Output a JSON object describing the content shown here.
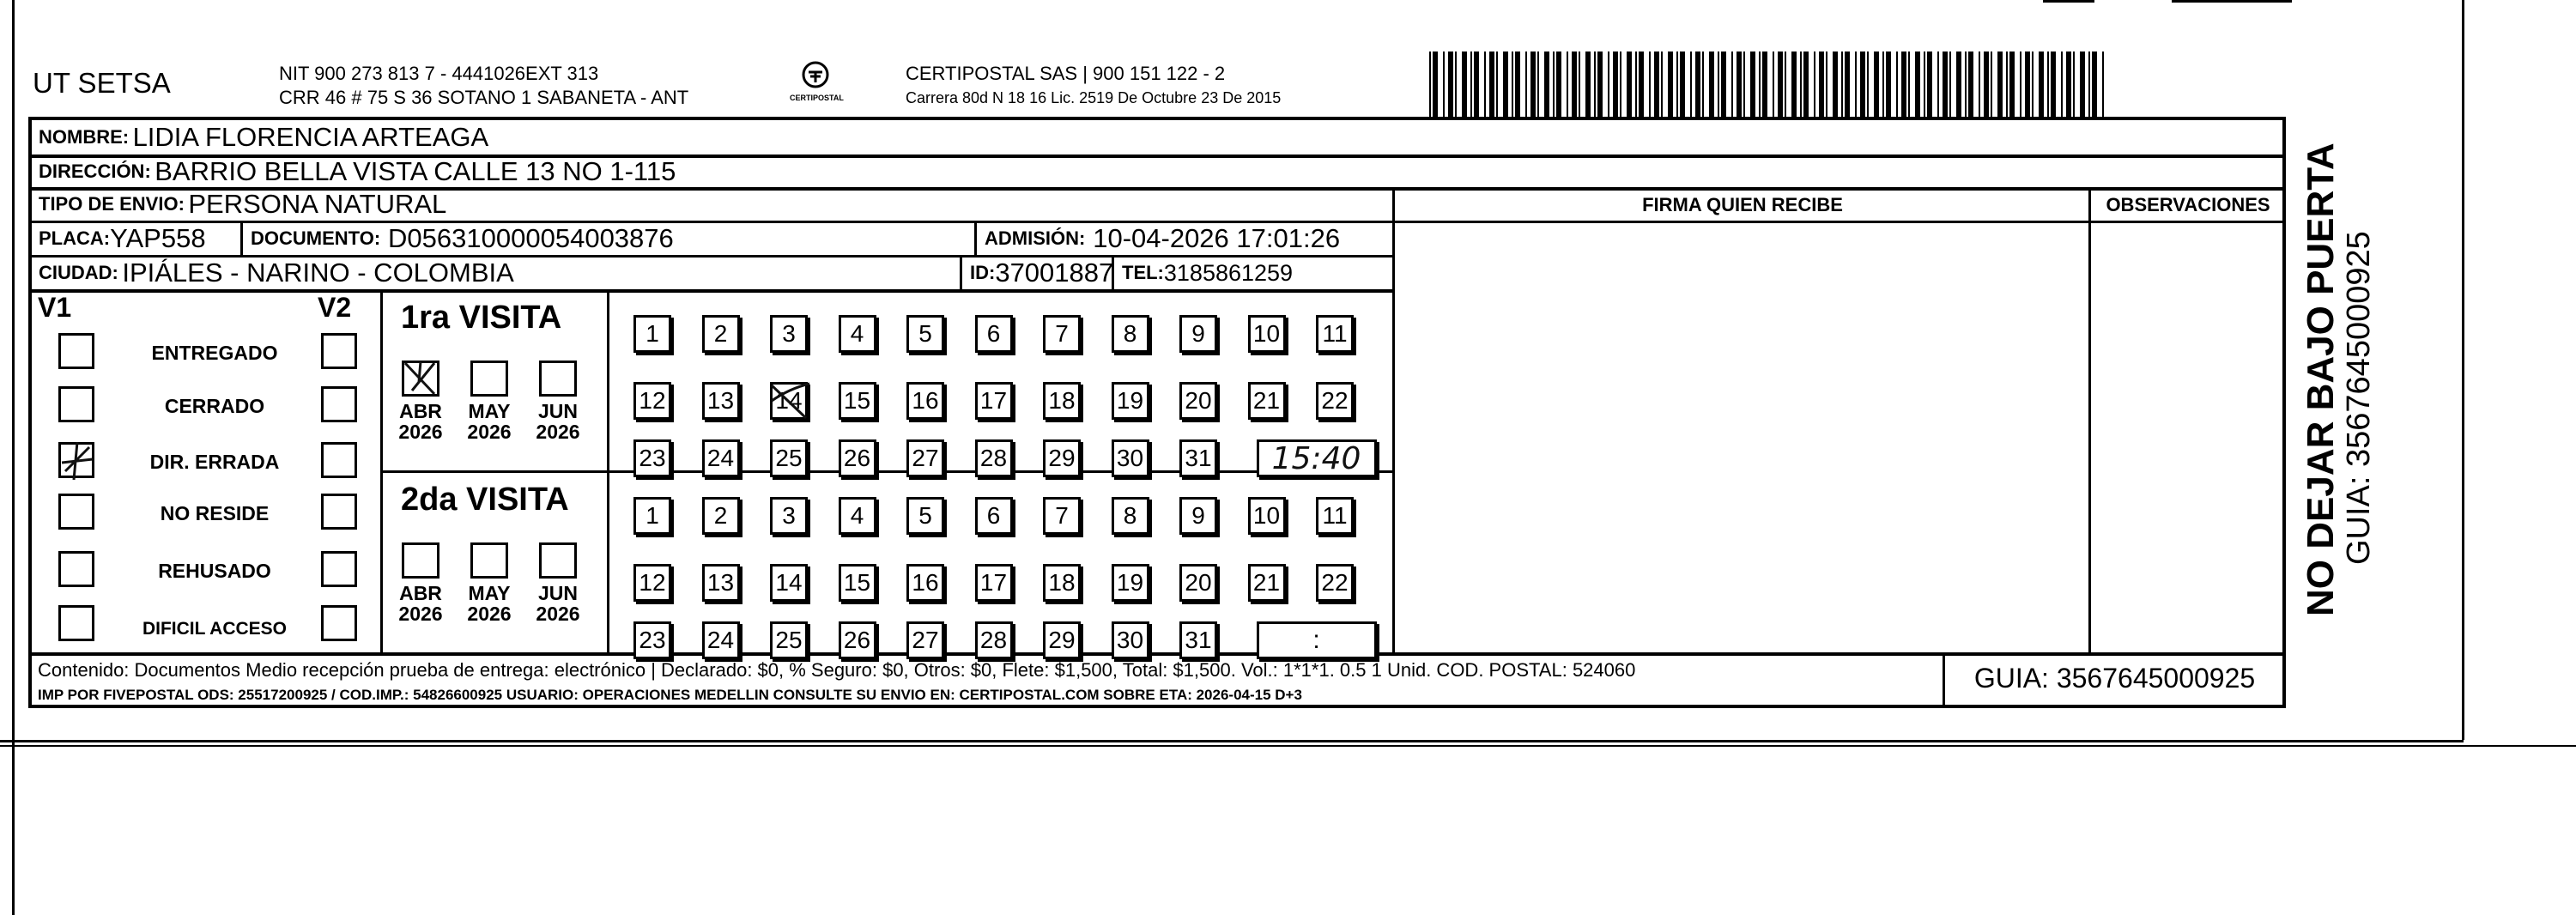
{
  "header": {
    "company": "UT SETSA",
    "nit": "NIT 900 273 813 7 - 4441026EXT 313",
    "address": "CRR 46 # 75 S 36 SOTANO 1 SABANETA - ANT",
    "logo_text": "CERTIPOSTAL",
    "carrier": "CERTIPOSTAL SAS | 900 151 122 - 2",
    "license": "Carrera 80d N 18 16  Lic. 2519 De Octubre 23 De 2015"
  },
  "recipient": {
    "nombre_label": "NOMBRE:",
    "nombre": "LIDIA FLORENCIA ARTEAGA",
    "direccion_label": "DIRECCIÓN:",
    "direccion": "BARRIO BELLA VISTA CALLE 13 NO 1-115",
    "tipo_label": "TIPO DE ENVIO:",
    "tipo": "PERSONA NATURAL",
    "placa_label": "PLACA:",
    "placa": "YAP558",
    "documento_label": "DOCUMENTO:",
    "documento": "D056310000054003876",
    "admision_label": "ADMISIÓN:",
    "admision": "10-04-2026 17:01:26",
    "ciudad_label": "CIUDAD:",
    "ciudad": "IPIÁLES - NARINO - COLOMBIA",
    "id_label": "ID:",
    "id": "37001887",
    "tel_label": "TEL:",
    "tel": "3185861259"
  },
  "columns": {
    "firma": "FIRMA QUIEN RECIBE",
    "observaciones": "OBSERVACIONES"
  },
  "status": {
    "v1": "V1",
    "v2": "V2",
    "items": [
      "ENTREGADO",
      "CERRADO",
      "DIR. ERRADA",
      "NO RESIDE",
      "REHUSADO",
      "DIFICIL ACCESO"
    ],
    "v1_marked": "DIR. ERRADA"
  },
  "visits": [
    {
      "title": "1ra VISITA",
      "months": [
        {
          "m": "ABR",
          "y": "2026"
        },
        {
          "m": "MAY",
          "y": "2026"
        },
        {
          "m": "JUN",
          "y": "2026"
        }
      ],
      "marked_month": "ABR",
      "marked_day": "14",
      "time": "15:40"
    },
    {
      "title": "2da VISITA",
      "months": [
        {
          "m": "ABR",
          "y": "2026"
        },
        {
          "m": "MAY",
          "y": "2026"
        },
        {
          "m": "JUN",
          "y": "2026"
        }
      ],
      "time": ":"
    }
  ],
  "days": [
    "1",
    "2",
    "3",
    "4",
    "5",
    "6",
    "7",
    "8",
    "9",
    "10",
    "11",
    "12",
    "13",
    "14",
    "15",
    "16",
    "17",
    "18",
    "19",
    "20",
    "21",
    "22",
    "23",
    "24",
    "25",
    "26",
    "27",
    "28",
    "29",
    "30",
    "31"
  ],
  "footer": {
    "contenido": "Contenido: Documentos Medio recepción prueba de entrega: electrónico | Declarado: $0, % Seguro: $0, Otros: $0, Flete: $1,500, Total: $1,500. Vol.: 1*1*1. 0.5  1 Unid. COD. POSTAL: 524060",
    "imp": "IMP POR FIVEPOSTAL ODS: 25517200925 / COD.IMP.: 54826600925 USUARIO: OPERACIONES MEDELLIN CONSULTE SU ENVIO EN: CERTIPOSTAL.COM SOBRE ETA: 2026-04-15 D+3",
    "guia": "GUIA: 3567645000925"
  },
  "side": {
    "warning": "NO DEJAR BAJO PUERTA",
    "guia": "GUIA: 3567645000925"
  }
}
